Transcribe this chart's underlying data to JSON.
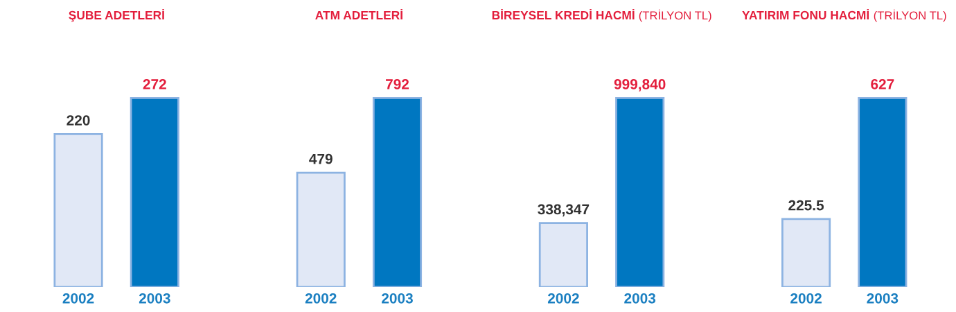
{
  "chart_data": [
    {
      "type": "bar",
      "title": "ŞUBE ADETLERİ",
      "categories": [
        "2002",
        "2003"
      ],
      "values": [
        220,
        272
      ],
      "colors": [
        "#e1e8f6",
        "#0077c1"
      ],
      "data_labels": true,
      "tick_labels": "x",
      "grid": false,
      "legend": false
    },
    {
      "type": "bar",
      "title": "ATM ADETLERİ",
      "categories": [
        "2002",
        "2003"
      ],
      "values": [
        479,
        792
      ],
      "colors": [
        "#e1e8f6",
        "#0077c1"
      ],
      "data_labels": true,
      "tick_labels": "x",
      "grid": false,
      "legend": false
    },
    {
      "type": "bar",
      "title": "BİREYSEL KREDİ HACMİ",
      "subtitle": "(TRİLYON TL)",
      "categories": [
        "2002",
        "2003"
      ],
      "values": [
        338347,
        999840
      ],
      "value_labels": [
        "338,347",
        "999,840"
      ],
      "colors": [
        "#e1e8f6",
        "#0077c1"
      ],
      "tick_labels": "x",
      "grid": false,
      "legend": false
    },
    {
      "type": "bar",
      "title": "YATIRIM FONU HACMİ",
      "subtitle": "(TRİLYON TL)",
      "categories": [
        "2002",
        "2003"
      ],
      "values": [
        225.5,
        627
      ],
      "colors": [
        "#e1e8f6",
        "#0077c1"
      ],
      "data_labels": true,
      "tick_labels": "x",
      "grid": false,
      "legend": false
    }
  ]
}
